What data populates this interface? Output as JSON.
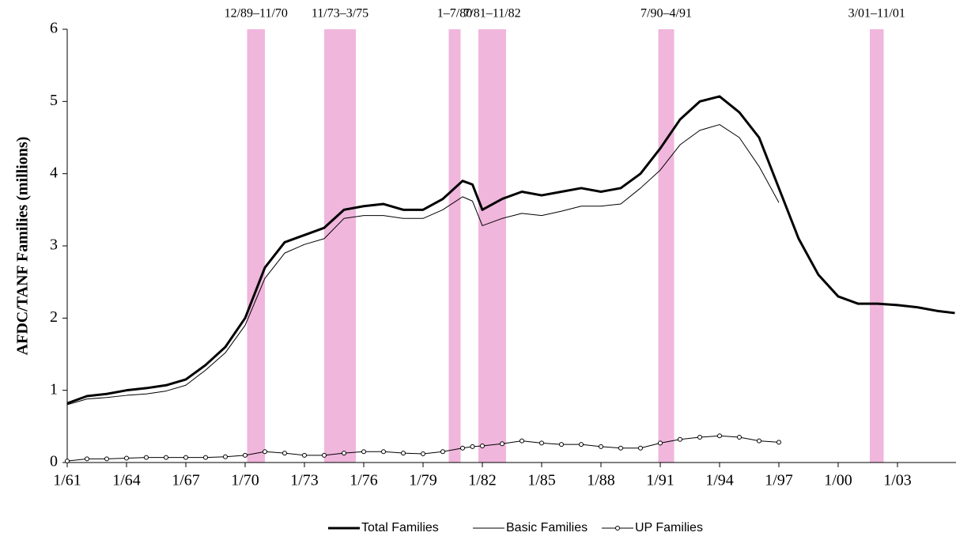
{
  "chart_data": {
    "type": "line",
    "y_label": "AFDC/TANF Families (millions)",
    "x": [
      1961,
      1962,
      1963,
      1964,
      1965,
      1966,
      1967,
      1968,
      1969,
      1970,
      1971,
      1972,
      1973,
      1974,
      1975,
      1976,
      1977,
      1978,
      1979,
      1980,
      1981,
      1981.5,
      1982,
      1983,
      1984,
      1985,
      1986,
      1987,
      1988,
      1989,
      1990,
      1991,
      1992,
      1993,
      1994,
      1995,
      1996,
      1997,
      1998,
      1999,
      2000,
      2001,
      2002,
      2003,
      2004,
      2005,
      2005.9
    ],
    "series": [
      {
        "name": "Total Families",
        "color": "#000000",
        "width": 3,
        "markers": false,
        "values": [
          0.82,
          0.92,
          0.95,
          1.0,
          1.03,
          1.07,
          1.15,
          1.35,
          1.6,
          2.0,
          2.7,
          3.05,
          3.15,
          3.25,
          3.5,
          3.55,
          3.58,
          3.5,
          3.5,
          3.65,
          3.9,
          3.85,
          3.5,
          3.65,
          3.75,
          3.7,
          3.75,
          3.8,
          3.75,
          3.8,
          4.0,
          4.35,
          4.75,
          5.0,
          5.07,
          4.85,
          4.5,
          3.8,
          3.1,
          2.6,
          2.3,
          2.2,
          2.2,
          2.18,
          2.15,
          2.1,
          2.07
        ]
      },
      {
        "name": "Basic Families",
        "color": "#000000",
        "width": 1,
        "markers": false,
        "values": [
          0.8,
          0.88,
          0.9,
          0.93,
          0.95,
          0.99,
          1.07,
          1.28,
          1.52,
          1.9,
          2.55,
          2.9,
          3.02,
          3.1,
          3.38,
          3.42,
          3.42,
          3.38,
          3.38,
          3.5,
          3.68,
          3.62,
          3.28,
          3.38,
          3.45,
          3.42,
          3.48,
          3.55,
          3.55,
          3.58,
          3.8,
          4.05,
          4.4,
          4.6,
          4.68,
          4.5,
          4.1,
          3.6,
          null,
          null,
          null,
          null,
          null,
          null,
          null,
          null,
          null
        ]
      },
      {
        "name": "UP Families",
        "color": "#000000",
        "width": 1,
        "markers": true,
        "values": [
          0.02,
          0.05,
          0.05,
          0.06,
          0.07,
          0.07,
          0.07,
          0.07,
          0.08,
          0.1,
          0.15,
          0.13,
          0.1,
          0.1,
          0.13,
          0.15,
          0.15,
          0.13,
          0.12,
          0.15,
          0.2,
          0.22,
          0.23,
          0.26,
          0.3,
          0.27,
          0.25,
          0.25,
          0.22,
          0.2,
          0.2,
          0.27,
          0.32,
          0.35,
          0.37,
          0.35,
          0.3,
          0.28,
          null,
          null,
          null,
          null,
          null,
          null,
          null,
          null,
          null
        ]
      }
    ],
    "shaded_periods": [
      {
        "label": "12/89–11/70",
        "start": 1970.1,
        "end": 1971.0
      },
      {
        "label": "11/73–3/75",
        "start": 1974.0,
        "end": 1975.6
      },
      {
        "label": "1–7/80",
        "start": 1980.3,
        "end": 1980.9
      },
      {
        "label": "7/81–11/82",
        "start": 1981.8,
        "end": 1983.2
      },
      {
        "label": "7/90–4/91",
        "start": 1990.9,
        "end": 1991.7
      },
      {
        "label": "3/01–11/01",
        "start": 2001.6,
        "end": 2002.3
      }
    ],
    "shade_color": "#f0b6dc",
    "xlim": [
      1961,
      2005.96
    ],
    "xticks": [
      {
        "value": 1961,
        "label": "1/61"
      },
      {
        "value": 1964,
        "label": "1/64"
      },
      {
        "value": 1967,
        "label": "1/67"
      },
      {
        "value": 1970,
        "label": "1/70"
      },
      {
        "value": 1973,
        "label": "1/73"
      },
      {
        "value": 1976,
        "label": "1/76"
      },
      {
        "value": 1979,
        "label": "1/79"
      },
      {
        "value": 1982,
        "label": "1/82"
      },
      {
        "value": 1985,
        "label": "1/85"
      },
      {
        "value": 1988,
        "label": "1/88"
      },
      {
        "value": 1991,
        "label": "1/91"
      },
      {
        "value": 1994,
        "label": "1/94"
      },
      {
        "value": 1997,
        "label": "1/97"
      },
      {
        "value": 2000,
        "label": "1/00"
      },
      {
        "value": 2003,
        "label": "1/03"
      }
    ],
    "ylim": [
      0,
      6
    ],
    "yticks": [
      0,
      1,
      2,
      3,
      4,
      5,
      6
    ],
    "legend": "bottom"
  }
}
